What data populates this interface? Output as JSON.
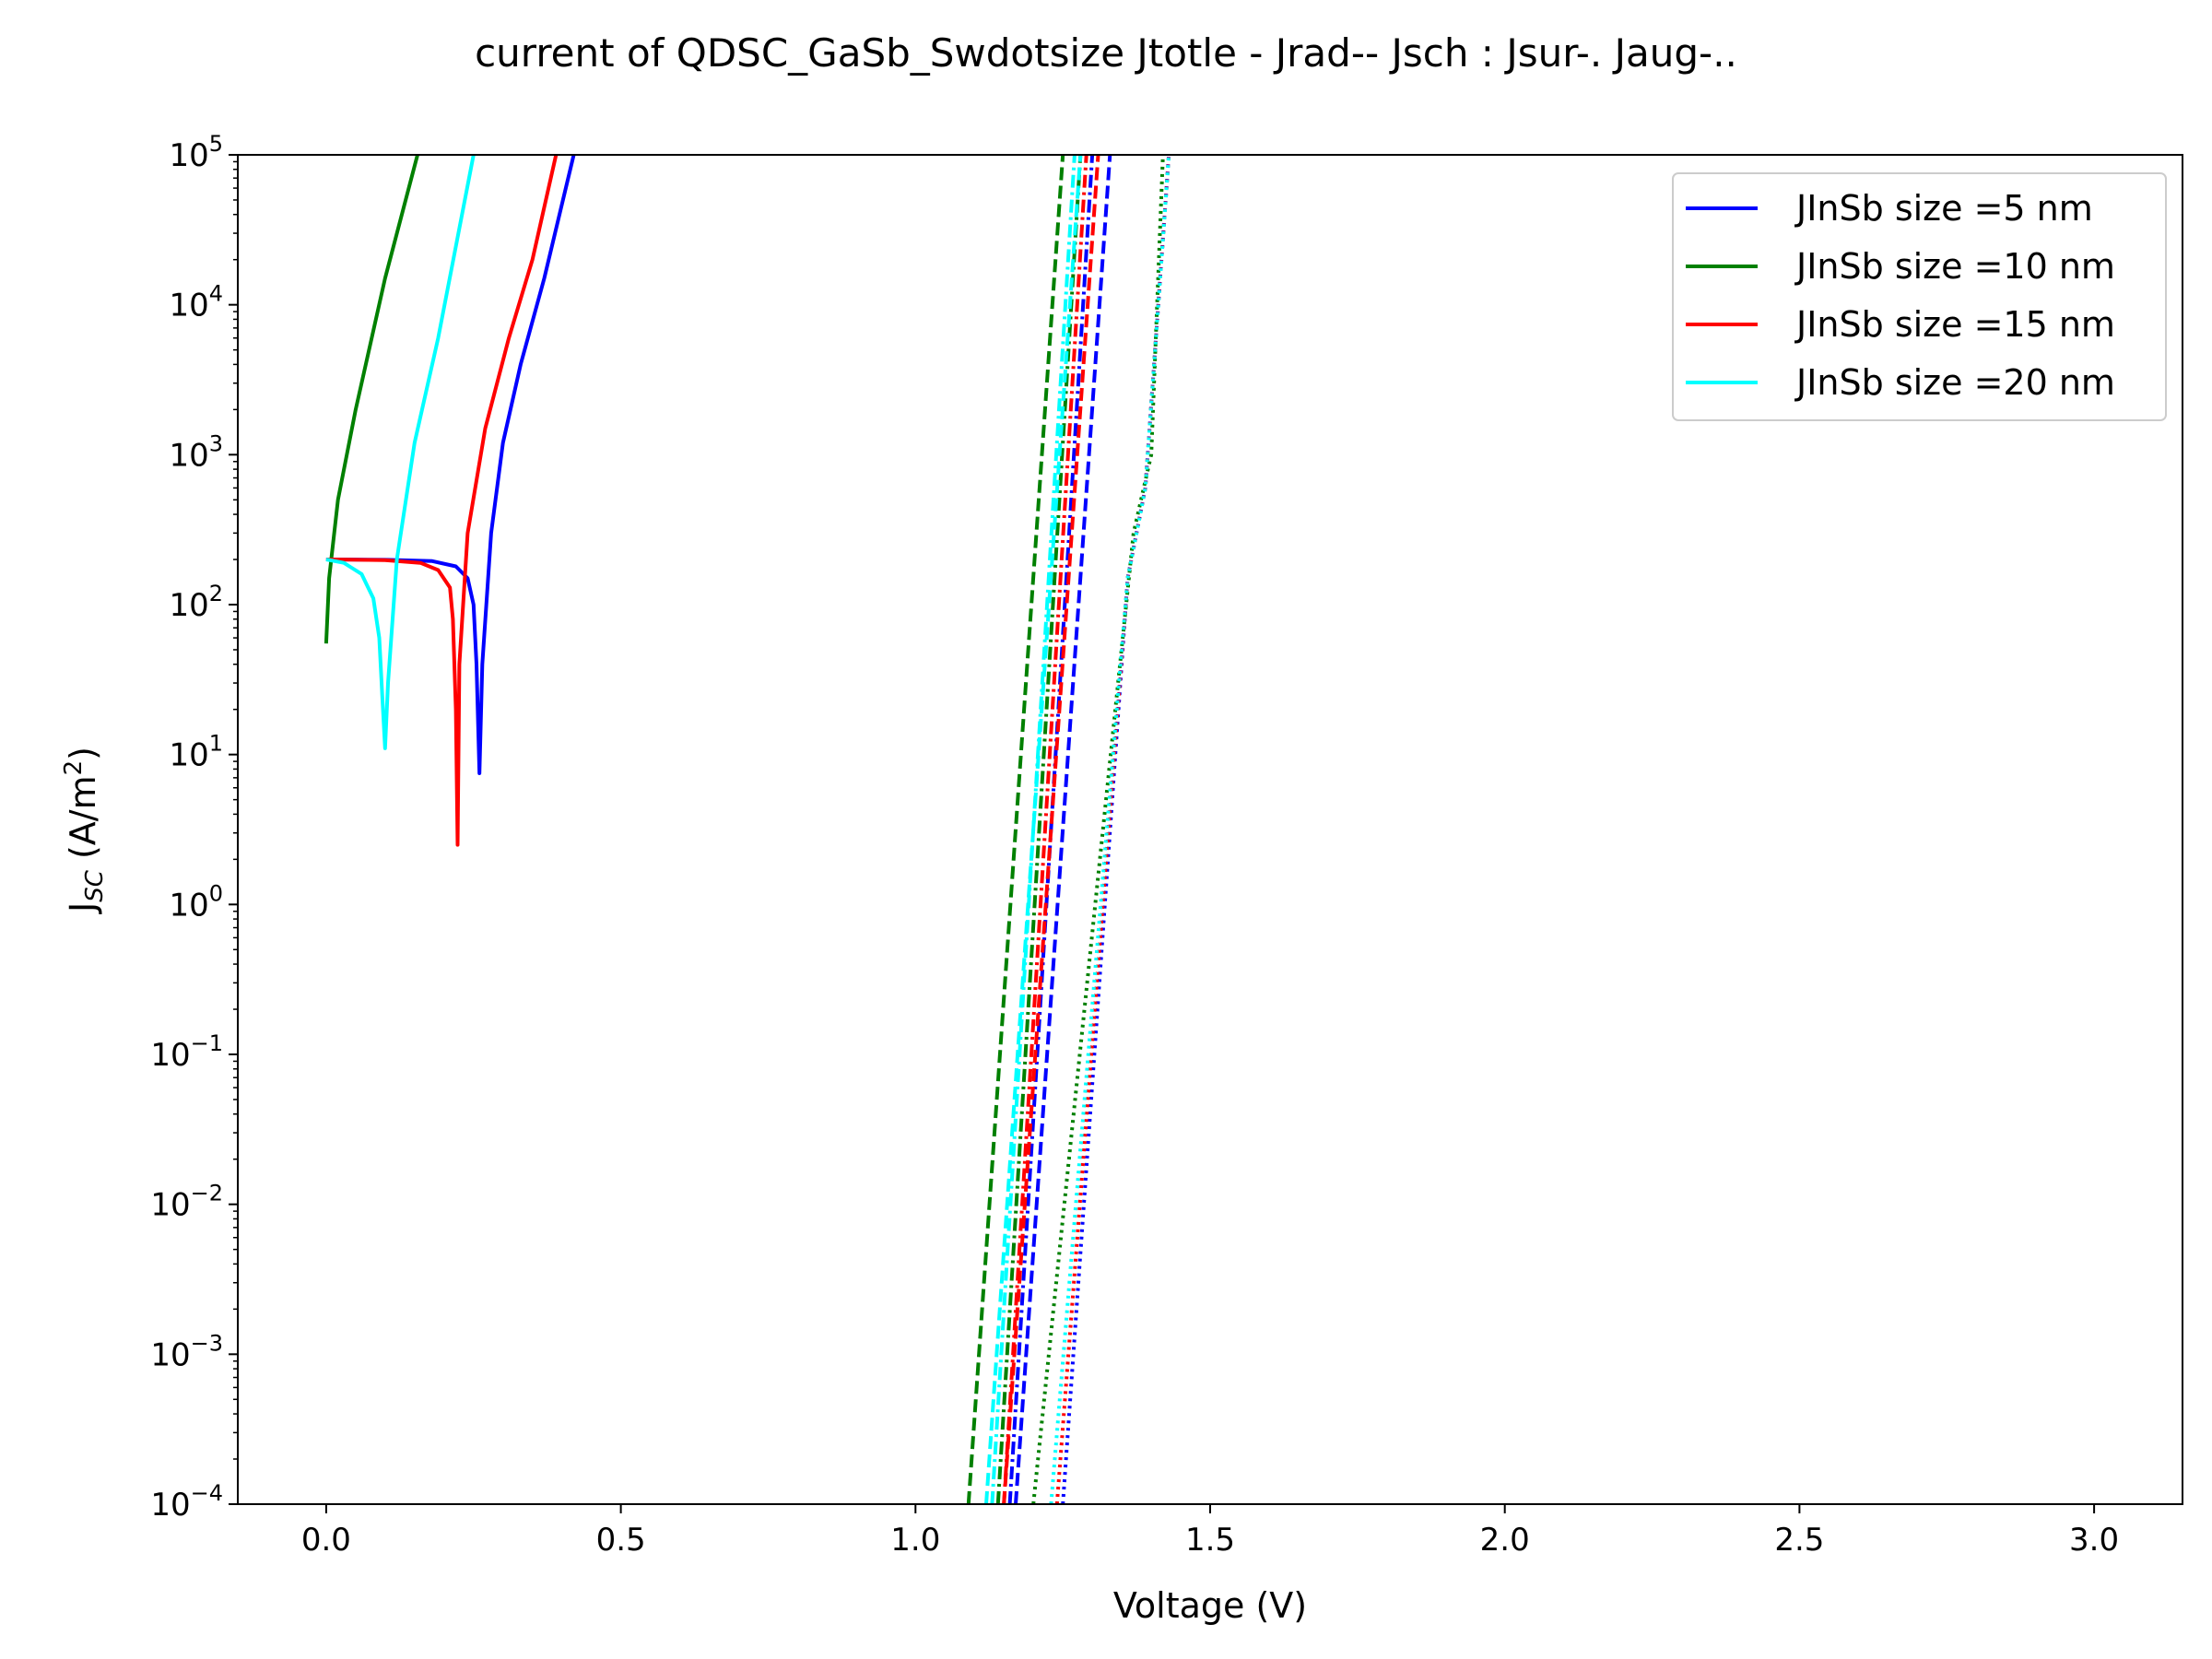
{
  "chart_data": {
    "type": "line",
    "title": "current of QDSC_GaSb_Swdotsize Jtotle - Jrad-- Jsch : Jsur-. Jaug-..",
    "xlabel": "Voltage (V)",
    "ylabel": "J",
    "ylabel_sub": "SC",
    "ylabel_unit": " (A/m",
    "ylabel_unit_sup": "2",
    "ylabel_unit_close": ")",
    "xscale": "linear",
    "yscale": "log",
    "xlim": [
      -0.15,
      3.15
    ],
    "ylim": [
      0.0001,
      100000
    ],
    "xticks": [
      0.0,
      0.5,
      1.0,
      1.5,
      2.0,
      2.5,
      3.0
    ],
    "xtick_labels": [
      "0.0",
      "0.5",
      "1.0",
      "1.5",
      "2.0",
      "2.5",
      "3.0"
    ],
    "yticks": [
      {
        "value": 0.0001,
        "base": "10",
        "exp": "−4"
      },
      {
        "value": 0.001,
        "base": "10",
        "exp": "−3"
      },
      {
        "value": 0.01,
        "base": "10",
        "exp": "−2"
      },
      {
        "value": 0.1,
        "base": "10",
        "exp": "−1"
      },
      {
        "value": 1,
        "base": "10",
        "exp": "0"
      },
      {
        "value": 10,
        "base": "10",
        "exp": "1"
      },
      {
        "value": 100,
        "base": "10",
        "exp": "2"
      },
      {
        "value": 1000,
        "base": "10",
        "exp": "3"
      },
      {
        "value": 10000,
        "base": "10",
        "exp": "4"
      },
      {
        "value": 100000,
        "base": "10",
        "exp": "5"
      }
    ],
    "grid": false,
    "legend_position": "top-right",
    "legend": [
      {
        "label": "JInSb size =5 nm",
        "color": "#0000ff"
      },
      {
        "label": "JInSb size =10 nm",
        "color": "#008000"
      },
      {
        "label": "JInSb size =15 nm",
        "color": "#ff0000"
      },
      {
        "label": "JInSb size =20 nm",
        "color": "#00ffff"
      }
    ],
    "series": [
      {
        "color": "#0000ff",
        "style": "solid",
        "x": [
          0.0,
          0.1,
          0.18,
          0.22,
          0.24,
          0.25,
          0.255,
          0.26,
          0.265,
          0.28,
          0.3,
          0.33,
          0.37,
          0.42
        ],
        "y": [
          200,
          199,
          195,
          180,
          150,
          100,
          40,
          7.5,
          40,
          300,
          1200,
          4000,
          15000,
          100000
        ]
      },
      {
        "color": "#0000ff",
        "style": "dashed",
        "x": [
          1.17,
          1.33
        ],
        "y": [
          0.0001,
          100000
        ]
      },
      {
        "color": "#0000ff",
        "style": "dashdot",
        "x": [
          1.16,
          1.3
        ],
        "y": [
          0.0001,
          100000
        ]
      },
      {
        "color": "#0000ff",
        "style": "dotted",
        "x": [
          1.25,
          1.36,
          1.39,
          1.43
        ],
        "y": [
          0.0001,
          150,
          600,
          100000
        ]
      },
      {
        "color": "#008000",
        "style": "solid",
        "x": [
          0.0,
          0.005,
          0.02,
          0.05,
          0.1,
          0.155
        ],
        "y": [
          55,
          150,
          500,
          2000,
          15000,
          100000
        ]
      },
      {
        "color": "#008000",
        "style": "dashed",
        "x": [
          1.09,
          1.25
        ],
        "y": [
          0.0001,
          100000
        ]
      },
      {
        "color": "#008000",
        "style": "dashdot",
        "x": [
          1.14,
          1.28
        ],
        "y": [
          0.0001,
          100000
        ]
      },
      {
        "color": "#008000",
        "style": "dotted",
        "x": [
          1.2,
          1.37,
          1.4,
          1.42
        ],
        "y": [
          0.0001,
          300,
          1000,
          100000
        ]
      },
      {
        "color": "#ff0000",
        "style": "solid",
        "x": [
          0.0,
          0.1,
          0.16,
          0.19,
          0.21,
          0.215,
          0.22,
          0.223,
          0.226,
          0.24,
          0.27,
          0.31,
          0.35,
          0.39
        ],
        "y": [
          200,
          198,
          190,
          170,
          130,
          80,
          20,
          2.5,
          40,
          300,
          1500,
          6000,
          20000,
          100000
        ]
      },
      {
        "color": "#ff0000",
        "style": "dashed",
        "x": [
          1.15,
          1.31
        ],
        "y": [
          0.0001,
          100000
        ]
      },
      {
        "color": "#ff0000",
        "style": "dashdot",
        "x": [
          1.15,
          1.29
        ],
        "y": [
          0.0001,
          100000
        ]
      },
      {
        "color": "#ff0000",
        "style": "dotted",
        "x": [
          1.24,
          1.36,
          1.39,
          1.43
        ],
        "y": [
          0.0001,
          150,
          600,
          100000
        ]
      },
      {
        "color": "#00ffff",
        "style": "solid",
        "x": [
          0.0,
          0.03,
          0.06,
          0.08,
          0.09,
          0.095,
          0.1,
          0.105,
          0.12,
          0.15,
          0.19,
          0.25
        ],
        "y": [
          200,
          190,
          160,
          110,
          60,
          25,
          11,
          30,
          200,
          1200,
          6000,
          100000
        ]
      },
      {
        "color": "#00ffff",
        "style": "dashed",
        "x": [
          1.12,
          1.28
        ],
        "y": [
          0.0001,
          100000
        ]
      },
      {
        "color": "#00ffff",
        "style": "dashdot",
        "x": [
          1.13,
          1.27
        ],
        "y": [
          0.0001,
          100000
        ]
      },
      {
        "color": "#00ffff",
        "style": "dotted",
        "x": [
          1.23,
          1.36,
          1.39,
          1.43
        ],
        "y": [
          0.0001,
          150,
          600,
          100000
        ]
      }
    ]
  }
}
